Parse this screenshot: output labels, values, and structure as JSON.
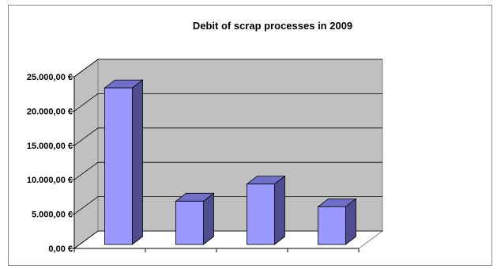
{
  "chart_data": {
    "type": "bar",
    "title": "Debit of scrap processes in 2009",
    "categories": [
      "",
      "",
      "",
      ""
    ],
    "values": [
      22800,
      6300,
      8800,
      5500
    ],
    "ylim": [
      0,
      25000
    ],
    "yticks": [
      0,
      5000,
      10000,
      15000,
      20000,
      25000
    ],
    "ytick_labels": [
      "0,00 €",
      "5.000,00 €",
      "10.000,00 €",
      "15.000,00 €",
      "20.000,00 €",
      "25.000,00 €"
    ],
    "grid": true,
    "legend": "none",
    "colors": {
      "bar_front": "#9999ff",
      "bar_side": "#4d4d8f",
      "bar_top": "#7070c8",
      "back_wall": "#c0c0c0",
      "floor": "#ffffff",
      "grid": "#000000"
    }
  }
}
